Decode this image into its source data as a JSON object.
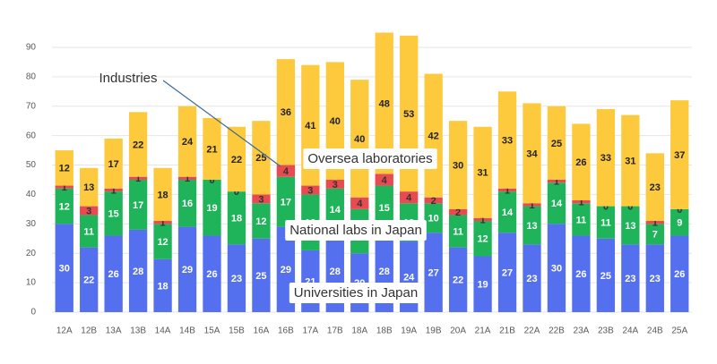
{
  "chart_data": {
    "type": "bar",
    "stacked": true,
    "categories": [
      "12A",
      "12B",
      "13A",
      "13B",
      "14A",
      "14B",
      "15A",
      "15B",
      "16A",
      "16B",
      "17A",
      "17B",
      "18A",
      "18B",
      "19A",
      "19B",
      "20A",
      "21A",
      "21B",
      "22A",
      "22B",
      "23A",
      "23B",
      "24A",
      "24B",
      "25A"
    ],
    "series": [
      {
        "name": "Universities in Japan",
        "color": "#5470ee",
        "values": [
          30,
          22,
          26,
          28,
          18,
          29,
          26,
          23,
          25,
          29,
          21,
          28,
          20,
          28,
          24,
          27,
          22,
          19,
          27,
          23,
          30,
          26,
          25,
          23,
          23,
          26
        ]
      },
      {
        "name": "National labs in Japan",
        "color": "#1fb35a",
        "values": [
          12,
          11,
          15,
          17,
          12,
          16,
          19,
          18,
          12,
          17,
          19,
          14,
          15,
          15,
          13,
          10,
          11,
          12,
          14,
          13,
          14,
          11,
          11,
          13,
          7,
          9
        ]
      },
      {
        "name": "Industries",
        "color": "#e84a52",
        "values": [
          1,
          3,
          1,
          1,
          1,
          1,
          0,
          0,
          3,
          4,
          3,
          3,
          4,
          4,
          4,
          2,
          2,
          1,
          1,
          1,
          1,
          1,
          0,
          0,
          1,
          0
        ]
      },
      {
        "name": "Oversea laboratories",
        "color": "#fdc93d",
        "values": [
          12,
          13,
          17,
          22,
          18,
          24,
          21,
          22,
          25,
          36,
          41,
          40,
          40,
          48,
          53,
          42,
          30,
          31,
          33,
          34,
          25,
          26,
          33,
          31,
          23,
          37
        ]
      }
    ],
    "ylim": [
      0,
      95
    ],
    "yticks": [
      0,
      10,
      20,
      30,
      40,
      50,
      60,
      70,
      80,
      90
    ],
    "grid": true
  }
}
